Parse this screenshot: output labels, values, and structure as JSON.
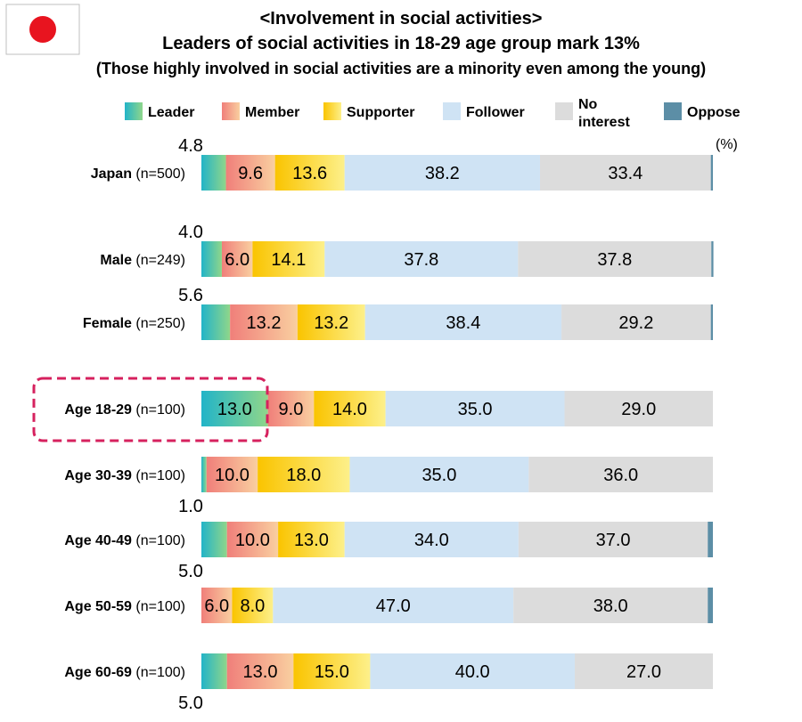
{
  "flag": {
    "country": "Japan",
    "colors": {
      "field": "#ffffff",
      "disc": "#e8141f"
    }
  },
  "titles": [
    "<Involvement in social activities>",
    "Leaders of social activities in 18-29 age group mark 13%",
    "(Those highly involved in social activities are a minority even among the young)"
  ],
  "unit_label": "(%)",
  "chart_data": {
    "type": "bar",
    "orientation": "horizontal",
    "stacked": true,
    "xlim": [
      0,
      100
    ],
    "categories": [
      {
        "name": "Japan",
        "n": "(n=500)"
      },
      {
        "name": "Male",
        "n": "(n=249)"
      },
      {
        "name": "Female",
        "n": "(n=250)"
      },
      {
        "name": "Age 18-29",
        "n": "(n=100)"
      },
      {
        "name": "Age 30-39",
        "n": "(n=100)"
      },
      {
        "name": "Age 40-49",
        "n": "(n=100)"
      },
      {
        "name": "Age 50-59",
        "n": "(n=100)"
      },
      {
        "name": "Age 60-69",
        "n": "(n=100)"
      }
    ],
    "series": [
      {
        "name": "Leader",
        "legend_label": "Leader",
        "colors": [
          "#22b4c8",
          "#8fd68a"
        ],
        "values": [
          4.8,
          4.0,
          5.6,
          13.0,
          1.0,
          5.0,
          0,
          5.0
        ],
        "labels": [
          "4.8",
          "4.0",
          "5.6",
          "13.0",
          "1.0",
          "5.0",
          "",
          "5.0"
        ]
      },
      {
        "name": "Member",
        "legend_label": "Member",
        "colors": [
          "#f07f7a",
          "#f9cfa0"
        ],
        "values": [
          9.6,
          6.0,
          13.2,
          9.0,
          10.0,
          10.0,
          6.0,
          13.0
        ],
        "labels": [
          "9.6",
          "6.0",
          "13.2",
          "9.0",
          "10.0",
          "10.0",
          "6.0",
          "13.0"
        ]
      },
      {
        "name": "Supporter",
        "legend_label": "Supporter",
        "colors": [
          "#fac400",
          "#fdf08a"
        ],
        "values": [
          13.6,
          14.1,
          13.2,
          14.0,
          18.0,
          13.0,
          8.0,
          15.0
        ],
        "labels": [
          "13.6",
          "14.1",
          "13.2",
          "14.0",
          "18.0",
          "13.0",
          "8.0",
          "15.0"
        ]
      },
      {
        "name": "Follower",
        "legend_label": "Follower",
        "colors": [
          "#cfe3f4"
        ],
        "values": [
          38.2,
          37.8,
          38.4,
          35.0,
          35.0,
          34.0,
          47.0,
          40.0
        ],
        "labels": [
          "38.2",
          "37.8",
          "38.4",
          "35.0",
          "35.0",
          "34.0",
          "47.0",
          "40.0"
        ]
      },
      {
        "name": "No interest",
        "legend_label": [
          "No",
          "interest"
        ],
        "colors": [
          "#dcdcdc"
        ],
        "values": [
          33.4,
          37.8,
          29.2,
          29.0,
          36.0,
          37.0,
          38.0,
          27.0
        ],
        "labels": [
          "33.4",
          "37.8",
          "29.2",
          "29.0",
          "36.0",
          "37.0",
          "38.0",
          "27.0"
        ]
      },
      {
        "name": "Oppose",
        "legend_label": "Oppose",
        "colors": [
          "#5c8ea6"
        ],
        "values": [
          0.4,
          0.4,
          0.4,
          0,
          0,
          1.0,
          1.0,
          0
        ],
        "labels": [
          "",
          "",
          "",
          "",
          "",
          "",
          "",
          ""
        ]
      }
    ],
    "highlight": {
      "category": "Age 18-29",
      "color": "#d6215e"
    }
  }
}
